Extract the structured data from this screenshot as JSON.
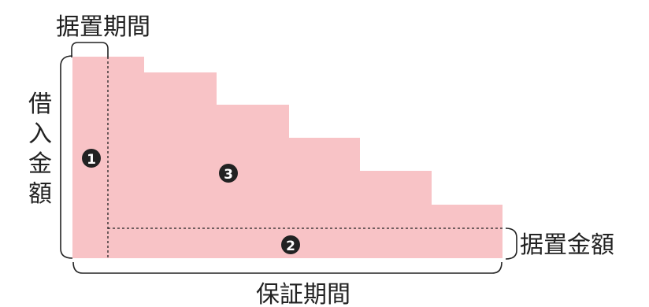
{
  "labels": {
    "grace_period": "据置期間",
    "loan_amount_chars": [
      "借",
      "入",
      "金",
      "額"
    ],
    "grace_amount": "据置金額",
    "guarantee_period": "保証期間"
  },
  "markers": {
    "m1": "1",
    "m2": "2",
    "m3": "3"
  },
  "colors": {
    "fill": "#f8c3c6",
    "line": "#222222",
    "marker": "#222222"
  }
}
